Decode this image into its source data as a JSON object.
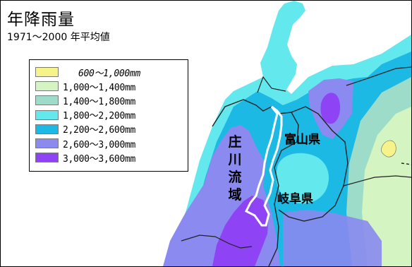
{
  "title": "年降雨量",
  "subtitle": "1971～2000 年平均値",
  "legend": [
    {
      "label": "600～1,000mm",
      "color": "#f6f38a"
    },
    {
      "label": "1,000～1,400mm",
      "color": "#d4f4c2"
    },
    {
      "label": "1,400～1,800mm",
      "color": "#9cdcc8"
    },
    {
      "label": "1,800～2,200mm",
      "color": "#63e8ee"
    },
    {
      "label": "2,200～2,600mm",
      "color": "#1bb9e4"
    },
    {
      "label": "2,600～3,000mm",
      "color": "#8a8af0"
    },
    {
      "label": "3,000～3,600mm",
      "color": "#8e44f4"
    }
  ],
  "labels": {
    "basin_chars": [
      "庄",
      "川",
      "流",
      "域"
    ],
    "toyama": "富山県",
    "gifu": "岐阜県"
  }
}
